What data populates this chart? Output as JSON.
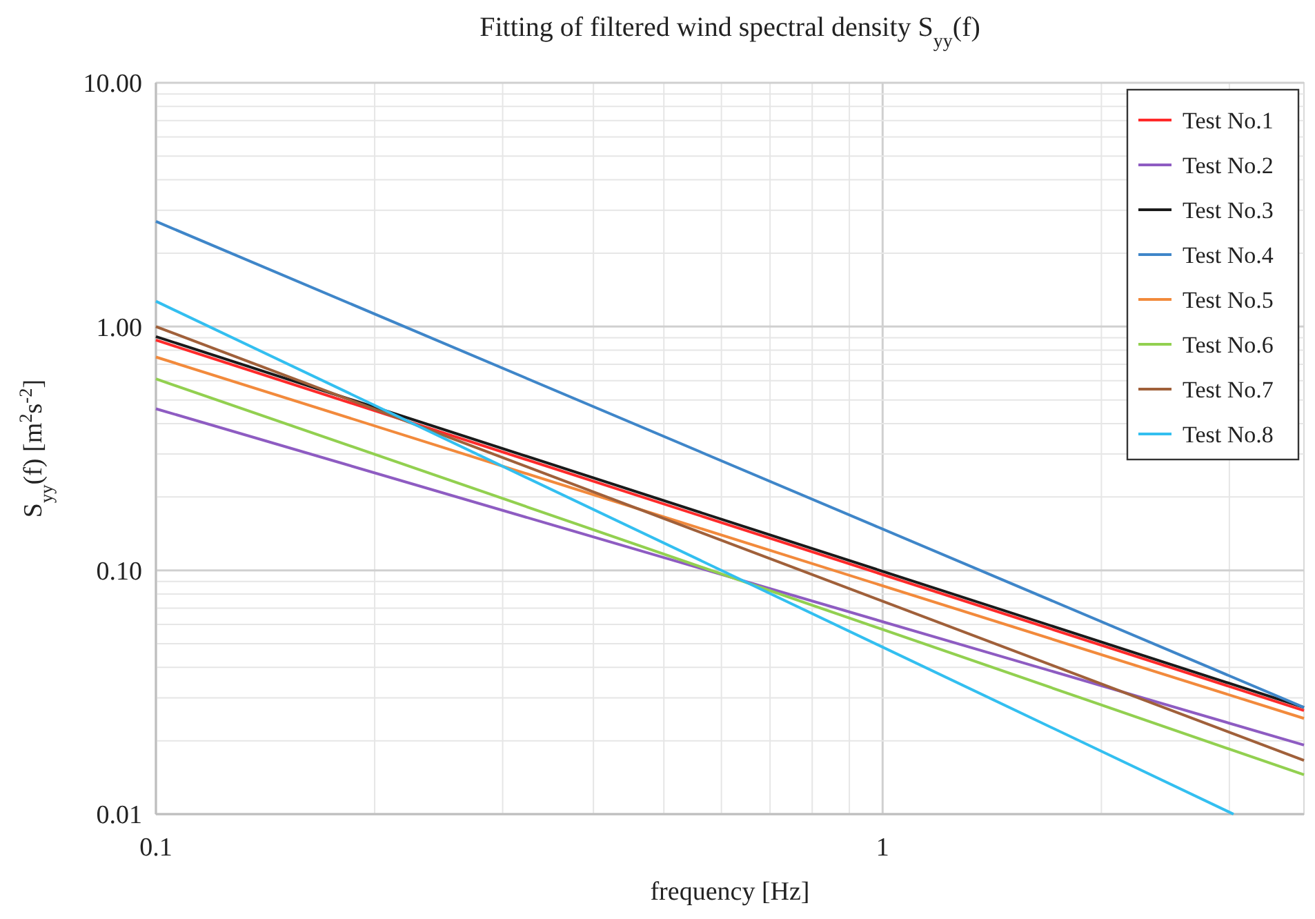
{
  "chart_data": {
    "type": "line",
    "title": "Fitting of filtered wind spectral density S$_{yy}$(f)",
    "xlabel": "frequency [Hz]",
    "ylabel": "S$_{yy}$(f) [m$^{2}$s$^{-2}$]",
    "log": "xy",
    "grid": true,
    "legend": "top right",
    "line_style": "solid",
    "marker": "none",
    "xlim": [
      0.1,
      3.8
    ],
    "ylim": [
      0.01,
      10
    ],
    "xticks": [
      0.1,
      {
        "value": 0.2,
        "label": null
      },
      {
        "value": 0.3,
        "label": null
      },
      {
        "value": 0.4,
        "label": null
      },
      {
        "value": 0.5,
        "label": null
      },
      {
        "value": 0.6,
        "label": null
      },
      {
        "value": 0.7,
        "label": null
      },
      {
        "value": 0.8,
        "label": null
      },
      {
        "value": 0.9,
        "label": null
      },
      1,
      {
        "value": 2,
        "label": null
      },
      {
        "value": 3,
        "label": null
      }
    ],
    "yticks": [
      0.01,
      {
        "value": 0.02,
        "label": null
      },
      {
        "value": 0.03,
        "label": null
      },
      {
        "value": 0.04,
        "label": null
      },
      {
        "value": 0.05,
        "label": null
      },
      {
        "value": 0.06,
        "label": null
      },
      {
        "value": 0.07,
        "label": null
      },
      {
        "value": 0.08,
        "label": null
      },
      {
        "value": 0.09,
        "label": null
      },
      {
        "value": 0.1,
        "label": "0.10"
      },
      {
        "value": 0.2,
        "label": null
      },
      {
        "value": 0.3,
        "label": null
      },
      {
        "value": 0.4,
        "label": null
      },
      {
        "value": 0.5,
        "label": null
      },
      {
        "value": 0.6,
        "label": null
      },
      {
        "value": 0.7,
        "label": null
      },
      {
        "value": 0.8,
        "label": null
      },
      {
        "value": 0.9,
        "label": null
      },
      {
        "value": 1,
        "label": "1.00"
      },
      {
        "value": 2,
        "label": null
      },
      {
        "value": 3,
        "label": null
      },
      {
        "value": 4,
        "label": null
      },
      {
        "value": 5,
        "label": null
      },
      {
        "value": 6,
        "label": null
      },
      {
        "value": 7,
        "label": null
      },
      {
        "value": 8,
        "label": null
      },
      {
        "value": 9,
        "label": null
      },
      {
        "value": 10,
        "label": "10.00"
      }
    ],
    "series": [
      {
        "name": "Test No.1",
        "color": "#ff2a2a",
        "x": [
          0.1,
          3.8
        ],
        "values": [
          0.88,
          0.0266
        ]
      },
      {
        "name": "Test No.2",
        "color": "#8e5cc2",
        "x": [
          0.1,
          3.8
        ],
        "values": [
          0.46,
          0.0192
        ]
      },
      {
        "name": "Test No.3",
        "color": "#1a1a1a",
        "x": [
          0.1,
          3.8
        ],
        "values": [
          0.91,
          0.0274
        ]
      },
      {
        "name": "Test No.4",
        "color": "#3f86c9",
        "x": [
          0.1,
          3.8
        ],
        "values": [
          2.7,
          0.0274
        ]
      },
      {
        "name": "Test No.5",
        "color": "#f28a3c",
        "x": [
          0.1,
          3.8
        ],
        "values": [
          0.75,
          0.0247
        ]
      },
      {
        "name": "Test No.6",
        "color": "#92d050",
        "x": [
          0.1,
          3.8
        ],
        "values": [
          0.61,
          0.0145
        ]
      },
      {
        "name": "Test No.7",
        "color": "#a0603a",
        "x": [
          0.1,
          3.8
        ],
        "values": [
          1.0,
          0.0166
        ]
      },
      {
        "name": "Test No.8",
        "color": "#33bff0",
        "x": [
          0.1,
          3.04
        ],
        "values": [
          1.27,
          0.01
        ]
      }
    ]
  }
}
